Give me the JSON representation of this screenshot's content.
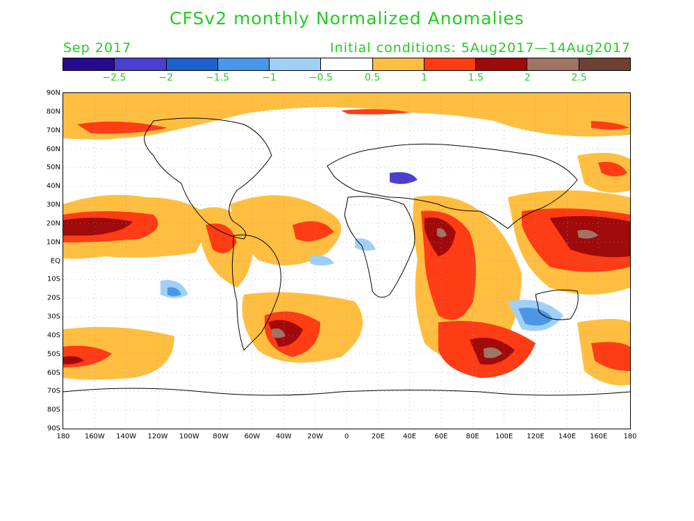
{
  "title": "CFSv2 monthly Normalized Anomalies",
  "subtitle_left": "Sep 2017",
  "subtitle_right": "Initial conditions: 5Aug2017—14Aug2017",
  "colorbar": {
    "colors": [
      "#240a8c",
      "#4a3fcf",
      "#1f60cc",
      "#4a96e8",
      "#a0d0f8",
      "#ffffff",
      "#ffbe40",
      "#ff3c14",
      "#a00a0a",
      "#a07464",
      "#6e4232"
    ],
    "labels": [
      "−2.5",
      "−2",
      "−1.5",
      "−1",
      "−0.5",
      "0.5",
      "1",
      "1.5",
      "2",
      "2.5"
    ]
  },
  "lat_labels": [
    "90N",
    "80N",
    "70N",
    "60N",
    "50N",
    "40N",
    "30N",
    "20N",
    "10N",
    "EQ",
    "10S",
    "20S",
    "30S",
    "40S",
    "50S",
    "60S",
    "70S",
    "80S",
    "90S"
  ],
  "lon_labels": [
    "180",
    "160W",
    "140W",
    "120W",
    "100W",
    "80W",
    "60W",
    "40W",
    "20W",
    "0",
    "20E",
    "40E",
    "60E",
    "80E",
    "100E",
    "120E",
    "140E",
    "160E",
    "180"
  ]
}
